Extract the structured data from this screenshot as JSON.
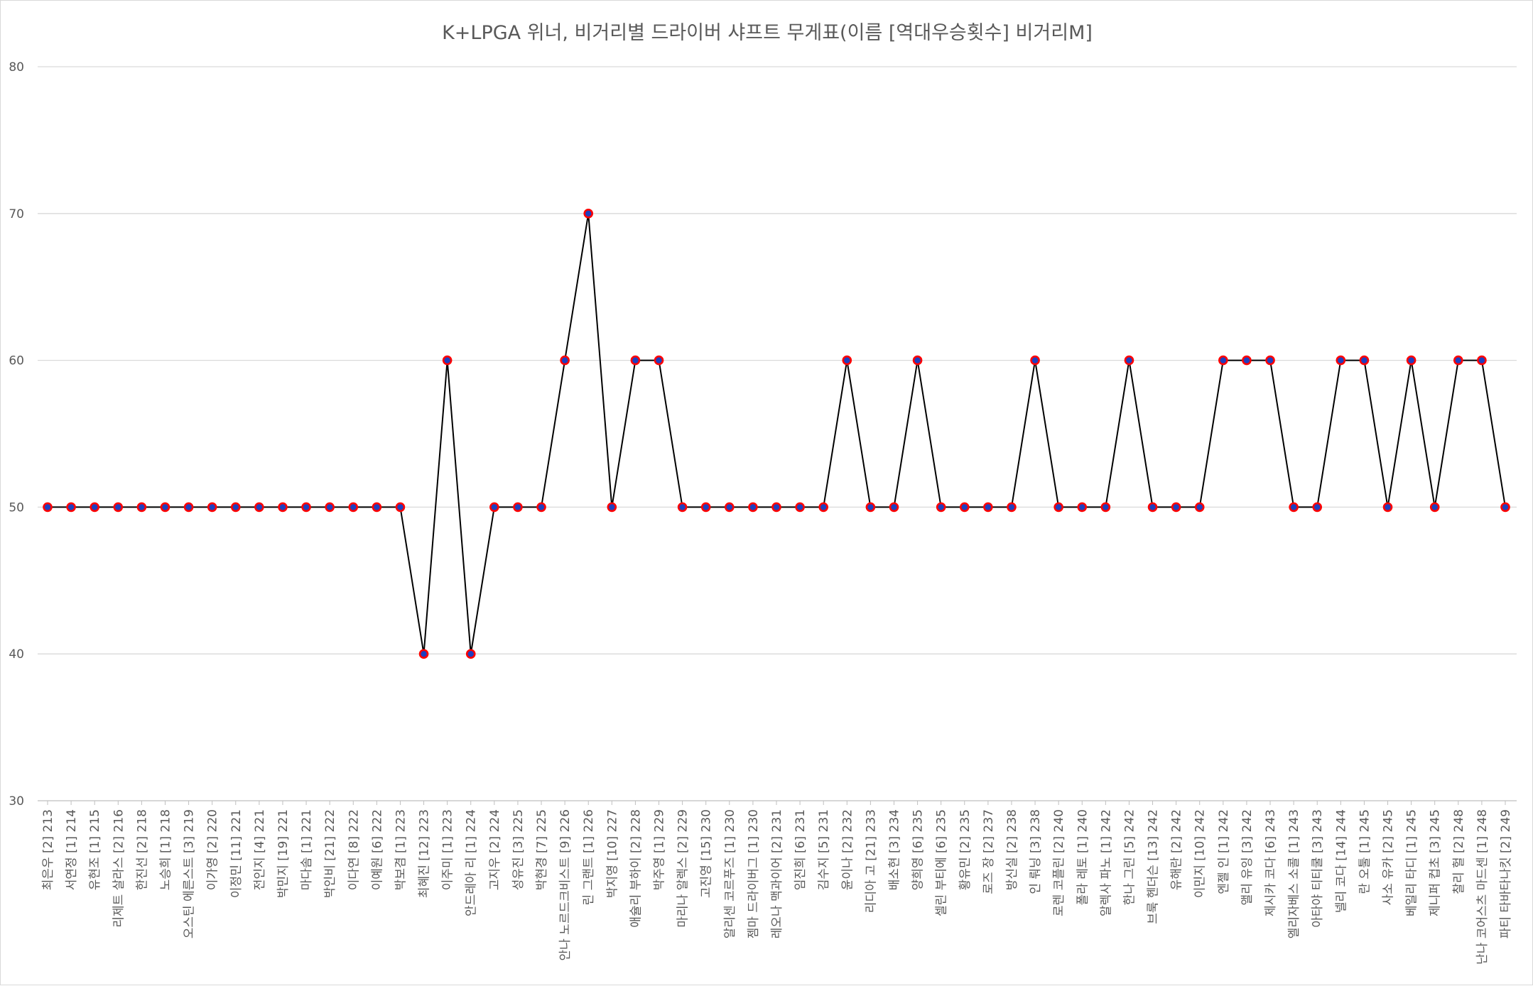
{
  "chart_data": {
    "type": "line",
    "title": "K+LPGA 위너, 비거리별 드라이버 샤프트 무게표(이름 [역대우승횟수] 비거리M]",
    "xlabel": "",
    "ylabel": "",
    "ylim": [
      30,
      80
    ],
    "yticks": [
      30,
      40,
      50,
      60,
      70,
      80
    ],
    "grid": true,
    "legend": "none",
    "categories": [
      "최은우 [2] 213",
      "서연정 [1] 214",
      "유현조 [1] 215",
      "리제트 살라스 [2] 216",
      "한진선 [2] 218",
      "노승희 [1] 218",
      "오스틴 에른스트 [3] 219",
      "이가영 [2] 220",
      "이정민 [11] 221",
      "전인지 [4] 221",
      "박민지 [19] 221",
      "마다솜 [1] 221",
      "박인비 [21] 222",
      "이다연 [8] 222",
      "이예원 [6] 222",
      "박보겸 [1] 223",
      "최혜진 [12] 223",
      "이주미 [1] 223",
      "안드레아 리 [1] 224",
      "고지우 [2] 224",
      "성유진 [3] 225",
      "박현경 [7] 225",
      "안나 노르드크비스트 [9] 226",
      "린 그랜트 [1] 226",
      "박지영 [10] 227",
      "애슐리 부하이 [2] 228",
      "박주영 [1] 229",
      "마리나 알렉스 [2] 229",
      "고진영 [15] 230",
      "알리센 코르푸즈 [1] 230",
      "젬마 드라이버그 [1] 230",
      "레오나 맥과이어 [2] 231",
      "임진희 [6] 231",
      "김수지 [5] 231",
      "윤이나 [2] 232",
      "리디아 고 [21] 233",
      "배소현 [3] 234",
      "양희영 [6] 235",
      "셀린 부티에 [6] 235",
      "황유민 [2] 235",
      "로즈 장 [2] 237",
      "방신실 [2] 238",
      "인 뤄닝 [3] 238",
      "로렌 코플린 [2] 240",
      "폴라 레토 [1] 240",
      "알렉사 파노 [1] 242",
      "한나 그린 [5] 242",
      "브룩 헨더슨 [13] 242",
      "유해란 [2] 242",
      "이민지 [10] 242",
      "엔젤 인 [1] 242",
      "앨리 유잉 [3] 242",
      "제시카 코다 [6] 243",
      "엘리자베스 소콜 [1] 243",
      "아타야 티티쿨 [3] 243",
      "넬리 코다 [14] 244",
      "란 오툴 [1] 245",
      "사소 유카 [2] 245",
      "베일리 타디 [1] 245",
      "제니퍼 컵초 [3] 245",
      "찰리 헐 [2] 248",
      "난나 코어스츠 마드센 [1] 248",
      "파티 타바타나킷 [2] 249"
    ],
    "series": [
      {
        "name": "",
        "line_color": "#000000",
        "marker_fill": "#1f3fbf",
        "marker_edge": "#ff0000",
        "values": [
          50,
          50,
          50,
          50,
          50,
          50,
          50,
          50,
          50,
          50,
          50,
          50,
          50,
          50,
          50,
          50,
          40,
          60,
          40,
          50,
          50,
          50,
          60,
          70,
          50,
          60,
          60,
          50,
          50,
          50,
          50,
          50,
          50,
          50,
          60,
          50,
          50,
          60,
          50,
          50,
          50,
          50,
          60,
          50,
          50,
          50,
          60,
          50,
          50,
          50,
          60,
          60,
          60,
          50,
          50,
          60,
          60,
          50,
          60,
          50,
          60,
          60,
          50
        ]
      }
    ],
    "gridline_color": "#d9d9d9",
    "axis_color": "#bfbfbf"
  }
}
